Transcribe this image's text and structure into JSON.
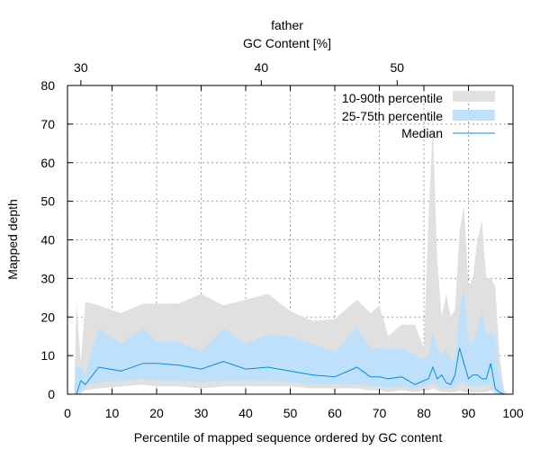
{
  "chart_data": {
    "type": "area",
    "title": "father",
    "xlabel": "Percentile of mapped sequence ordered by GC content",
    "ylabel": "Mapped depth",
    "x2label": "GC Content [%]",
    "xlim": [
      0,
      100
    ],
    "ylim": [
      0,
      80
    ],
    "xticks": [
      0,
      10,
      20,
      30,
      40,
      50,
      60,
      70,
      80,
      90,
      100
    ],
    "yticks": [
      0,
      10,
      20,
      30,
      40,
      50,
      60,
      70,
      80
    ],
    "x2ticks": [
      {
        "label": "30",
        "x": 3
      },
      {
        "label": "40",
        "x": 43.5
      },
      {
        "label": "50",
        "x": 74
      }
    ],
    "grid": true,
    "legend_position": "top-right",
    "colors": {
      "p10_90": "#e0e0e0",
      "p25_75": "#bfe0fb",
      "median": "#0a8ad6"
    },
    "x": [
      1.5,
      2,
      3,
      4,
      7,
      12,
      17,
      20,
      25,
      30,
      35,
      40,
      45,
      50,
      55,
      60,
      65,
      68,
      70,
      72,
      75,
      78,
      80,
      81,
      82,
      83,
      84,
      85,
      86,
      87,
      88,
      89,
      90,
      91,
      92,
      93,
      94,
      95,
      96,
      97,
      98,
      99,
      100
    ],
    "series": [
      {
        "name": "10-90th percentile",
        "lower": [
          0,
          0,
          0.5,
          1,
          1.5,
          2,
          2.5,
          2,
          2,
          1.5,
          2,
          2,
          2,
          2,
          1.5,
          1.5,
          1.5,
          1,
          1,
          0.5,
          1,
          0.5,
          1,
          1,
          1.5,
          1,
          0.5,
          0.5,
          0.5,
          0.5,
          1,
          0.5,
          0.5,
          0.5,
          0.5,
          0.5,
          0.5,
          1,
          0,
          0,
          0,
          0,
          0
        ],
        "upper": [
          0,
          24,
          8,
          24,
          23,
          21,
          23.5,
          23.5,
          23.5,
          26,
          23,
          24.5,
          26,
          21.5,
          19,
          19.5,
          24.5,
          21,
          23,
          15,
          18,
          18,
          12,
          45,
          70,
          35,
          20,
          26,
          20,
          22,
          42,
          49,
          28,
          30,
          40,
          45,
          30,
          30,
          28,
          10,
          1,
          0,
          0
        ]
      },
      {
        "name": "25-75th percentile",
        "lower": [
          0,
          0,
          0,
          2,
          3,
          3.5,
          4,
          3.5,
          3.5,
          3,
          3.5,
          3.5,
          3.5,
          3,
          2.5,
          2.5,
          2.5,
          2,
          2,
          1.5,
          2,
          1.5,
          2,
          2,
          3,
          2,
          1.5,
          1.5,
          1.5,
          1.5,
          3,
          3,
          2,
          2,
          2,
          2,
          2,
          3,
          0,
          0,
          0,
          0,
          0
        ],
        "upper": [
          0,
          7,
          7,
          5,
          17,
          13,
          17,
          13.5,
          13.5,
          11,
          17,
          13,
          15.5,
          15,
          13,
          11,
          17.5,
          12,
          12,
          11.5,
          12,
          10,
          9,
          10,
          16,
          12,
          10,
          12,
          9,
          9,
          22,
          28,
          14,
          13,
          17,
          22,
          15,
          16,
          15,
          5,
          0.5,
          0,
          0
        ]
      },
      {
        "name": "Median",
        "values": [
          0,
          0,
          3.5,
          2.5,
          7,
          6,
          8,
          8,
          7.5,
          6.5,
          8.5,
          6.5,
          7,
          6,
          5,
          4.5,
          7,
          4.5,
          4.5,
          4,
          4.5,
          2.5,
          3.5,
          4,
          7,
          4,
          5,
          3,
          2.5,
          5,
          12,
          8,
          4,
          5,
          5,
          4,
          4,
          8,
          1.5,
          0.5,
          0,
          0,
          0
        ]
      }
    ]
  }
}
